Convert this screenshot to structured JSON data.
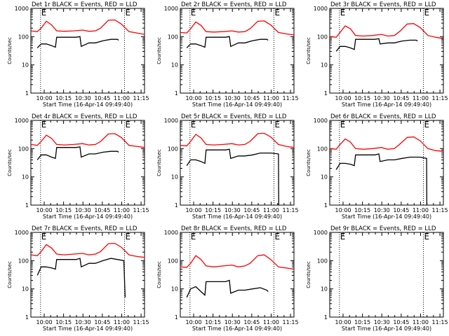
{
  "figure": {
    "x_ticklabels": [
      "10:00",
      "10:15",
      "10:30",
      "10:45",
      "11:00",
      "11:15"
    ],
    "xlabel": "Start Time (16-Apr-14 09:49:40)",
    "ylabel": "Counts/sec",
    "y_ticklabels": [
      "1",
      "10",
      "100",
      "1000"
    ],
    "marker_label": "E",
    "colors": {
      "events": "#000000",
      "lld": "#ff0000",
      "axes": "#000000",
      "background": "#ffffff"
    }
  },
  "chart_data": [
    {
      "type": "line",
      "title": "Det 1r BLACK = Events, RED = LLD",
      "x_unit": "minutes since 09:49:40",
      "xlim": [
        0,
        88
      ],
      "ylim": [
        1,
        1000
      ],
      "ylog": true,
      "grid": false,
      "markers_x": [
        7.5,
        72.5
      ],
      "series": [
        {
          "name": "Events",
          "color": "#000000",
          "x": [
            5,
            8,
            12,
            16,
            19,
            20,
            28,
            35,
            38,
            39,
            45,
            50,
            56,
            62,
            67,
            68
          ],
          "y": [
            40,
            55,
            55,
            48,
            42,
            95,
            95,
            95,
            100,
            45,
            60,
            60,
            72,
            80,
            80,
            75
          ]
        },
        {
          "name": "LLD",
          "color": "#ff0000",
          "x": [
            0,
            5,
            8,
            12,
            16,
            20,
            26,
            33,
            40,
            45,
            50,
            54,
            60,
            65,
            70,
            76,
            82,
            88
          ],
          "y": [
            160,
            150,
            200,
            350,
            260,
            160,
            155,
            160,
            170,
            155,
            160,
            200,
            380,
            390,
            280,
            150,
            135,
            120
          ]
        }
      ]
    },
    {
      "type": "line",
      "title": "Det 2r BLACK = Events, RED = LLD",
      "x_unit": "minutes since 09:49:40",
      "xlim": [
        0,
        88
      ],
      "ylim": [
        1,
        1000
      ],
      "ylog": true,
      "grid": false,
      "markers_x": [
        7.5,
        72.5
      ],
      "series": [
        {
          "name": "Events",
          "color": "#000000",
          "x": [
            5,
            8,
            12,
            16,
            19,
            20,
            28,
            35,
            38,
            39,
            45,
            50,
            56,
            62,
            67,
            68
          ],
          "y": [
            40,
            55,
            55,
            48,
            42,
            95,
            95,
            95,
            100,
            45,
            60,
            60,
            72,
            80,
            80,
            75
          ]
        },
        {
          "name": "LLD",
          "color": "#ff0000",
          "x": [
            0,
            5,
            8,
            12,
            16,
            20,
            26,
            33,
            40,
            45,
            50,
            54,
            60,
            65,
            70,
            76,
            82,
            88
          ],
          "y": [
            140,
            135,
            190,
            330,
            250,
            150,
            145,
            150,
            160,
            145,
            150,
            190,
            350,
            360,
            260,
            140,
            125,
            115
          ]
        }
      ]
    },
    {
      "type": "line",
      "title": "Det 3r BLACK = Events, RED = LLD",
      "x_unit": "minutes since 09:49:40",
      "xlim": [
        0,
        88
      ],
      "ylim": [
        1,
        1000
      ],
      "ylog": true,
      "grid": false,
      "markers_x": [
        7.5,
        72.5
      ],
      "series": [
        {
          "name": "Events",
          "color": "#000000",
          "x": [
            5,
            8,
            12,
            16,
            19,
            20,
            28,
            35,
            38,
            39,
            45,
            50,
            56,
            62,
            67,
            68
          ],
          "y": [
            30,
            45,
            45,
            40,
            35,
            80,
            80,
            80,
            85,
            55,
            60,
            60,
            70,
            75,
            75,
            70
          ]
        },
        {
          "name": "LLD",
          "color": "#ff0000",
          "x": [
            0,
            5,
            8,
            12,
            16,
            20,
            26,
            33,
            40,
            45,
            50,
            54,
            60,
            65,
            70,
            76,
            82,
            88
          ],
          "y": [
            100,
            95,
            140,
            240,
            190,
            110,
            105,
            110,
            120,
            105,
            110,
            150,
            280,
            290,
            210,
            110,
            95,
            85
          ]
        }
      ]
    },
    {
      "type": "line",
      "title": "Det 4r BLACK = Events, RED = LLD",
      "x_unit": "minutes since 09:49:40",
      "xlim": [
        0,
        88
      ],
      "ylim": [
        1,
        1000
      ],
      "ylog": true,
      "grid": false,
      "markers_x": [
        7.5,
        72.5
      ],
      "series": [
        {
          "name": "Events",
          "color": "#000000",
          "x": [
            5,
            8,
            12,
            16,
            19,
            20,
            28,
            35,
            38,
            39,
            45,
            50,
            56,
            62,
            67,
            68
          ],
          "y": [
            40,
            60,
            60,
            50,
            45,
            110,
            110,
            110,
            115,
            50,
            65,
            65,
            75,
            80,
            80,
            75
          ]
        },
        {
          "name": "LLD",
          "color": "#ff0000",
          "x": [
            0,
            5,
            8,
            12,
            16,
            20,
            26,
            33,
            40,
            45,
            50,
            54,
            60,
            65,
            70,
            76,
            82,
            88
          ],
          "y": [
            140,
            130,
            180,
            300,
            230,
            140,
            135,
            140,
            150,
            135,
            140,
            180,
            330,
            340,
            250,
            130,
            120,
            110
          ]
        }
      ]
    },
    {
      "type": "line",
      "title": "Det 5r BLACK = Events, RED = LLD",
      "x_unit": "minutes since 09:49:40",
      "xlim": [
        0,
        88
      ],
      "ylim": [
        1,
        1000
      ],
      "ylog": true,
      "grid": false,
      "markers_x": [
        7.5,
        72.5
      ],
      "series": [
        {
          "name": "Events",
          "color": "#000000",
          "x": [
            5,
            8,
            12,
            16,
            19,
            20,
            28,
            35,
            38,
            39,
            45,
            50,
            56,
            62,
            67,
            70,
            76,
            76.2
          ],
          "y": [
            25,
            40,
            40,
            35,
            30,
            90,
            90,
            90,
            95,
            45,
            55,
            55,
            60,
            70,
            70,
            70,
            65,
            1
          ]
        },
        {
          "name": "LLD",
          "color": "#ff0000",
          "x": [
            0,
            5,
            8,
            12,
            16,
            20,
            26,
            33,
            40,
            45,
            50,
            54,
            60,
            65,
            70,
            76,
            82,
            88
          ],
          "y": [
            130,
            125,
            180,
            320,
            240,
            140,
            135,
            140,
            150,
            135,
            140,
            180,
            340,
            350,
            260,
            140,
            120,
            110
          ]
        }
      ]
    },
    {
      "type": "line",
      "title": "Det 6r BLACK = Events, RED = LLD",
      "x_unit": "minutes since 09:49:40",
      "xlim": [
        0,
        88
      ],
      "ylim": [
        1,
        1000
      ],
      "ylog": true,
      "grid": false,
      "markers_x": [
        7.5,
        72.5
      ],
      "series": [
        {
          "name": "Events",
          "color": "#000000",
          "x": [
            5,
            8,
            12,
            16,
            19,
            20,
            28,
            35,
            38,
            39,
            45,
            50,
            56,
            62,
            67,
            70,
            75,
            75.2
          ],
          "y": [
            18,
            30,
            30,
            28,
            25,
            60,
            60,
            60,
            65,
            35,
            40,
            40,
            45,
            50,
            50,
            50,
            45,
            1
          ]
        },
        {
          "name": "LLD",
          "color": "#ff0000",
          "x": [
            0,
            5,
            8,
            12,
            16,
            20,
            26,
            33,
            40,
            45,
            50,
            54,
            60,
            65,
            70,
            76,
            82,
            88
          ],
          "y": [
            100,
            95,
            140,
            220,
            170,
            100,
            95,
            100,
            110,
            95,
            100,
            140,
            250,
            260,
            190,
            100,
            85,
            80
          ]
        }
      ]
    },
    {
      "type": "line",
      "title": "Det 7r BLACK = Events, RED = LLD",
      "x_unit": "minutes since 09:49:40",
      "xlim": [
        0,
        88
      ],
      "ylim": [
        1,
        1000
      ],
      "ylog": true,
      "grid": false,
      "markers_x": [
        7.5,
        72.5
      ],
      "series": [
        {
          "name": "Events",
          "color": "#000000",
          "x": [
            5,
            8,
            12,
            16,
            19,
            20,
            28,
            35,
            38,
            39,
            45,
            50,
            56,
            62,
            67,
            72,
            73
          ],
          "y": [
            30,
            60,
            60,
            55,
            50,
            110,
            110,
            110,
            120,
            60,
            80,
            80,
            100,
            120,
            110,
            100,
            5
          ]
        },
        {
          "name": "LLD",
          "color": "#ff0000",
          "x": [
            0,
            5,
            8,
            12,
            16,
            20,
            26,
            33,
            40,
            45,
            50,
            54,
            60,
            65,
            70,
            76,
            82,
            88
          ],
          "y": [
            160,
            150,
            210,
            370,
            280,
            170,
            160,
            170,
            180,
            160,
            170,
            210,
            400,
            410,
            300,
            160,
            140,
            130
          ]
        }
      ]
    },
    {
      "type": "line",
      "title": "Det 8r BLACK = Events, RED = LLD",
      "x_unit": "minutes since 09:49:40",
      "xlim": [
        0,
        88
      ],
      "ylim": [
        1,
        1000
      ],
      "ylog": true,
      "grid": false,
      "markers_x": [
        7.5,
        72.5
      ],
      "series": [
        {
          "name": "Events",
          "color": "#000000",
          "x": [
            5,
            8,
            12,
            16,
            19,
            20,
            28,
            35,
            38,
            39,
            45,
            50,
            56,
            62,
            67,
            68
          ],
          "y": [
            5,
            10,
            12,
            8,
            6,
            18,
            18,
            18,
            20,
            7,
            9,
            9,
            10,
            11,
            9,
            8
          ]
        },
        {
          "name": "LLD",
          "color": "#ff0000",
          "x": [
            0,
            5,
            8,
            12,
            16,
            20,
            26,
            33,
            40,
            45,
            50,
            54,
            60,
            65,
            70,
            76,
            82,
            88
          ],
          "y": [
            60,
            58,
            80,
            150,
            110,
            65,
            60,
            65,
            70,
            60,
            65,
            80,
            150,
            160,
            110,
            60,
            55,
            50
          ]
        }
      ]
    },
    {
      "type": "line",
      "title": "Det 9r BLACK = Events, RED = LLD",
      "x_unit": "minutes since 09:49:40",
      "xlim": [
        0,
        88
      ],
      "ylim": [
        1,
        1000
      ],
      "ylog": true,
      "grid": false,
      "markers_x": [
        7.5,
        72.5
      ],
      "series": []
    }
  ]
}
